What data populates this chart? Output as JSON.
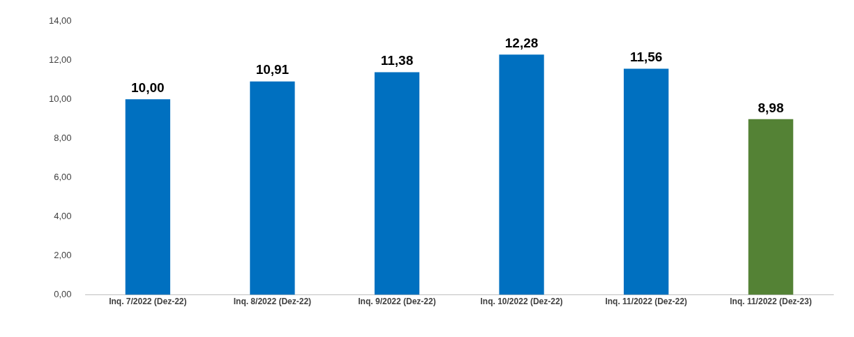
{
  "chart_data": {
    "type": "bar",
    "categories": [
      "Inq. 7/2022 (Dez-22)",
      "Inq. 8/2022 (Dez-22)",
      "Inq. 9/2022 (Dez-22)",
      "Inq. 10/2022 (Dez-22)",
      "Inq. 11/2022 (Dez-22)",
      "Inq. 11/2022 (Dez-23)"
    ],
    "values": [
      10.0,
      10.91,
      11.38,
      12.28,
      11.56,
      8.98
    ],
    "colors": [
      "#0070c0",
      "#0070c0",
      "#0070c0",
      "#0070c0",
      "#0070c0",
      "#548235"
    ],
    "value_labels": [
      "10,00",
      "10,91",
      "11,38",
      "12,28",
      "11,56",
      "8,98"
    ],
    "ylim": [
      0,
      14
    ],
    "yticks": [
      {
        "value": 0,
        "label": "0,00"
      },
      {
        "value": 2,
        "label": "2,00"
      },
      {
        "value": 4,
        "label": "4,00"
      },
      {
        "value": 6,
        "label": "6,00"
      },
      {
        "value": 8,
        "label": "8,00"
      },
      {
        "value": 10,
        "label": "10,00"
      },
      {
        "value": 12,
        "label": "12,00"
      },
      {
        "value": 14,
        "label": "14,00"
      }
    ],
    "grid": false,
    "legend": false
  }
}
